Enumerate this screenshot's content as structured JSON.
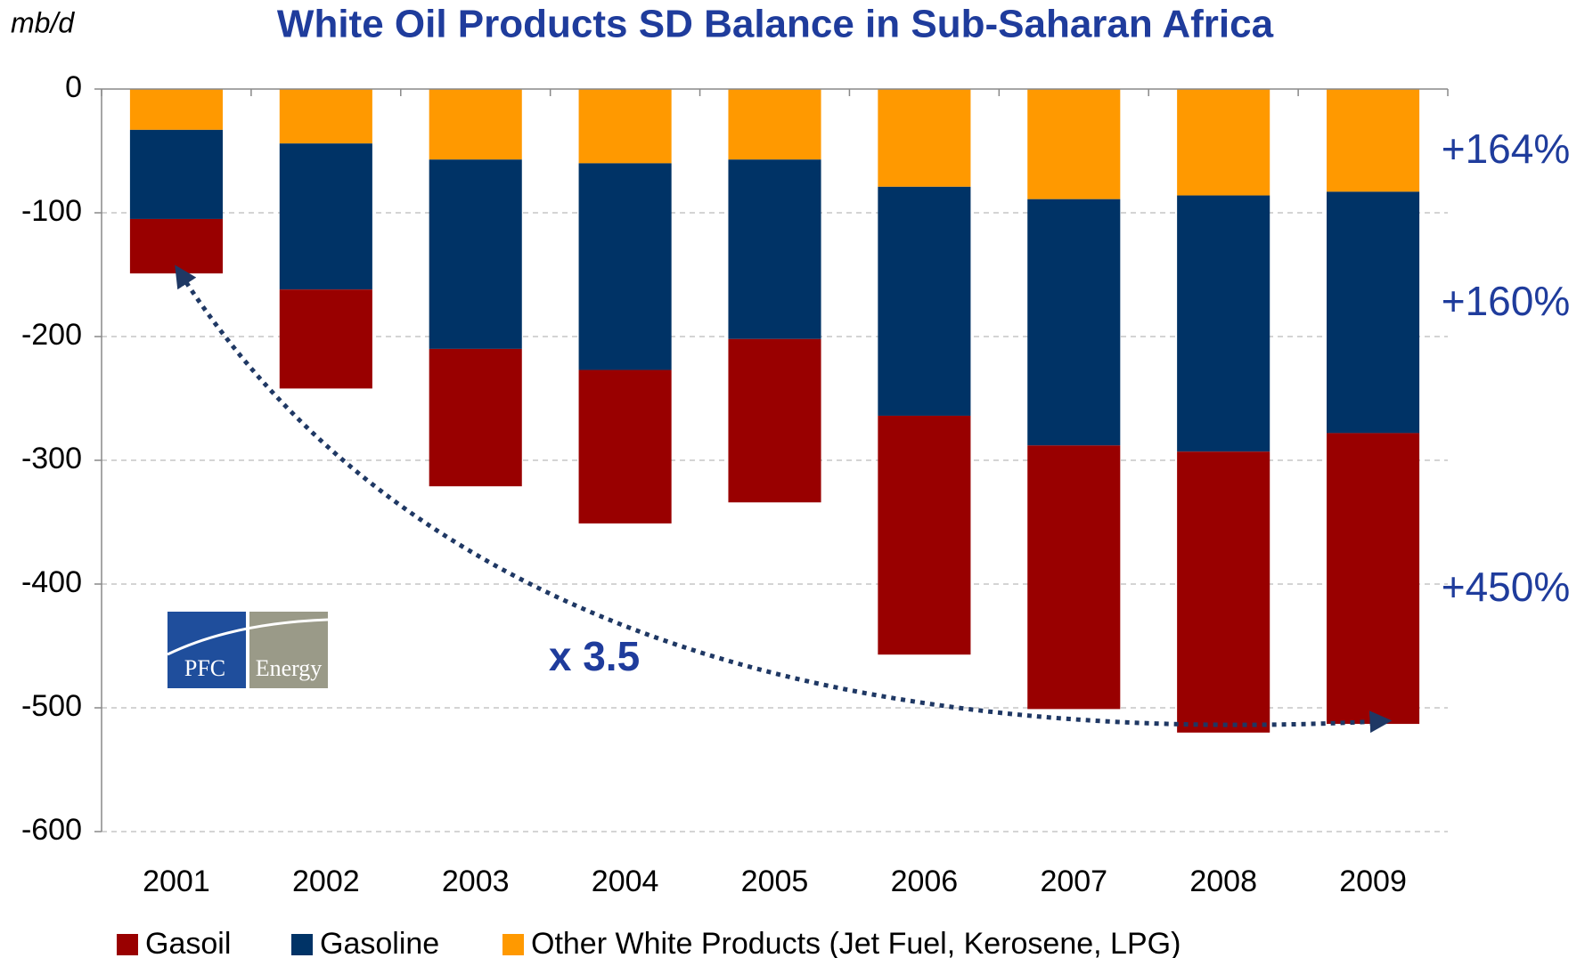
{
  "chart_data": {
    "type": "stacked_bar",
    "title": "White Oil Products SD Balance in Sub-Saharan Africa",
    "y_label": "mb/d",
    "categories": [
      "2001",
      "2002",
      "2003",
      "2004",
      "2005",
      "2006",
      "2007",
      "2008",
      "2009"
    ],
    "series": [
      {
        "name": "Gasoil",
        "color": "#990000",
        "values": [
          -44,
          -80,
          -111,
          -124,
          -132,
          -193,
          -213,
          -227,
          -235
        ]
      },
      {
        "name": "Gasoline",
        "color": "#003366",
        "values": [
          -72,
          -118,
          -153,
          -167,
          -145,
          -185,
          -199,
          -207,
          -195
        ]
      },
      {
        "name": "Other White Products (Jet Fuel, Kerosene, LPG)",
        "color": "#ff9900",
        "values": [
          -33,
          -44,
          -57,
          -60,
          -57,
          -79,
          -89,
          -86,
          -83
        ]
      }
    ],
    "ylim": [
      -600,
      0
    ],
    "yticks": [
      0,
      -100,
      -200,
      -300,
      -400,
      -500,
      -600
    ],
    "grid": true,
    "annotations": [
      "+164%",
      "+160%",
      "+450%",
      "x 3.5"
    ],
    "logo": [
      "PFC",
      "Energy"
    ]
  }
}
